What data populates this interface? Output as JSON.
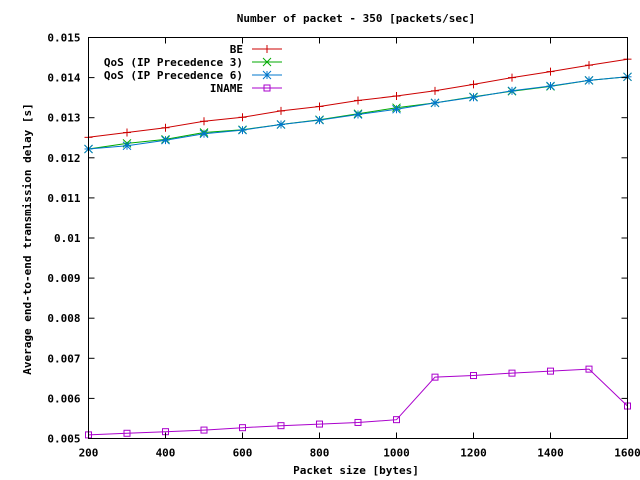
{
  "chart_data": {
    "type": "line",
    "title": "Number of packet - 350 [packets/sec]",
    "xlabel": "Packet size [bytes]",
    "ylabel": "Average end-to-end transmission delay [s]",
    "xlim": [
      200,
      1600
    ],
    "ylim": [
      0.005,
      0.015
    ],
    "grid": false,
    "legend_position": "top-left (inside plot)",
    "x_ticks": [
      200,
      400,
      600,
      800,
      1000,
      1200,
      1400,
      1600
    ],
    "x_tick_labels": [
      "200",
      "400",
      "600",
      "800",
      "1000",
      "1200",
      "1400",
      "1600"
    ],
    "y_ticks": [
      0.005,
      0.006,
      0.007,
      0.008,
      0.009,
      0.01,
      0.011,
      0.012,
      0.013,
      0.014,
      0.015
    ],
    "y_tick_labels": [
      "0.005",
      "0.006",
      "0.007",
      "0.008",
      "0.009",
      "0.01",
      "0.011",
      "0.012",
      "0.013",
      "0.014",
      "0.015"
    ],
    "x": [
      200,
      300,
      400,
      500,
      600,
      700,
      800,
      900,
      1000,
      1100,
      1200,
      1300,
      1400,
      1500,
      1600
    ],
    "series": [
      {
        "name": "BE",
        "color": "#cc0000",
        "marker": "plus",
        "values": [
          0.01251,
          0.01263,
          0.01275,
          0.01291,
          0.01301,
          0.01317,
          0.01328,
          0.01343,
          0.01354,
          0.01367,
          0.01383,
          0.014,
          0.01415,
          0.01431,
          0.01446
        ]
      },
      {
        "name": "QoS (IP Precedence 3)",
        "color": "#00aa00",
        "marker": "cross",
        "values": [
          0.01222,
          0.01236,
          0.01246,
          0.01263,
          0.0127,
          0.01283,
          0.01295,
          0.0131,
          0.01325,
          0.01337,
          0.01352,
          0.01366,
          0.01378,
          0.01393,
          0.01402
        ]
      },
      {
        "name": "QoS (IP Precedence 6)",
        "color": "#0077cc",
        "marker": "star",
        "values": [
          0.01222,
          0.0123,
          0.01244,
          0.0126,
          0.01269,
          0.01283,
          0.01294,
          0.01308,
          0.01321,
          0.01337,
          0.01351,
          0.01367,
          0.01379,
          0.01393,
          0.01402
        ]
      },
      {
        "name": "INAME",
        "color": "#aa00cc",
        "marker": "square",
        "values": [
          0.00509,
          0.00513,
          0.00517,
          0.00521,
          0.00527,
          0.00532,
          0.00536,
          0.0054,
          0.00547,
          0.00653,
          0.00657,
          0.00663,
          0.00668,
          0.00673,
          0.00581
        ]
      }
    ]
  }
}
